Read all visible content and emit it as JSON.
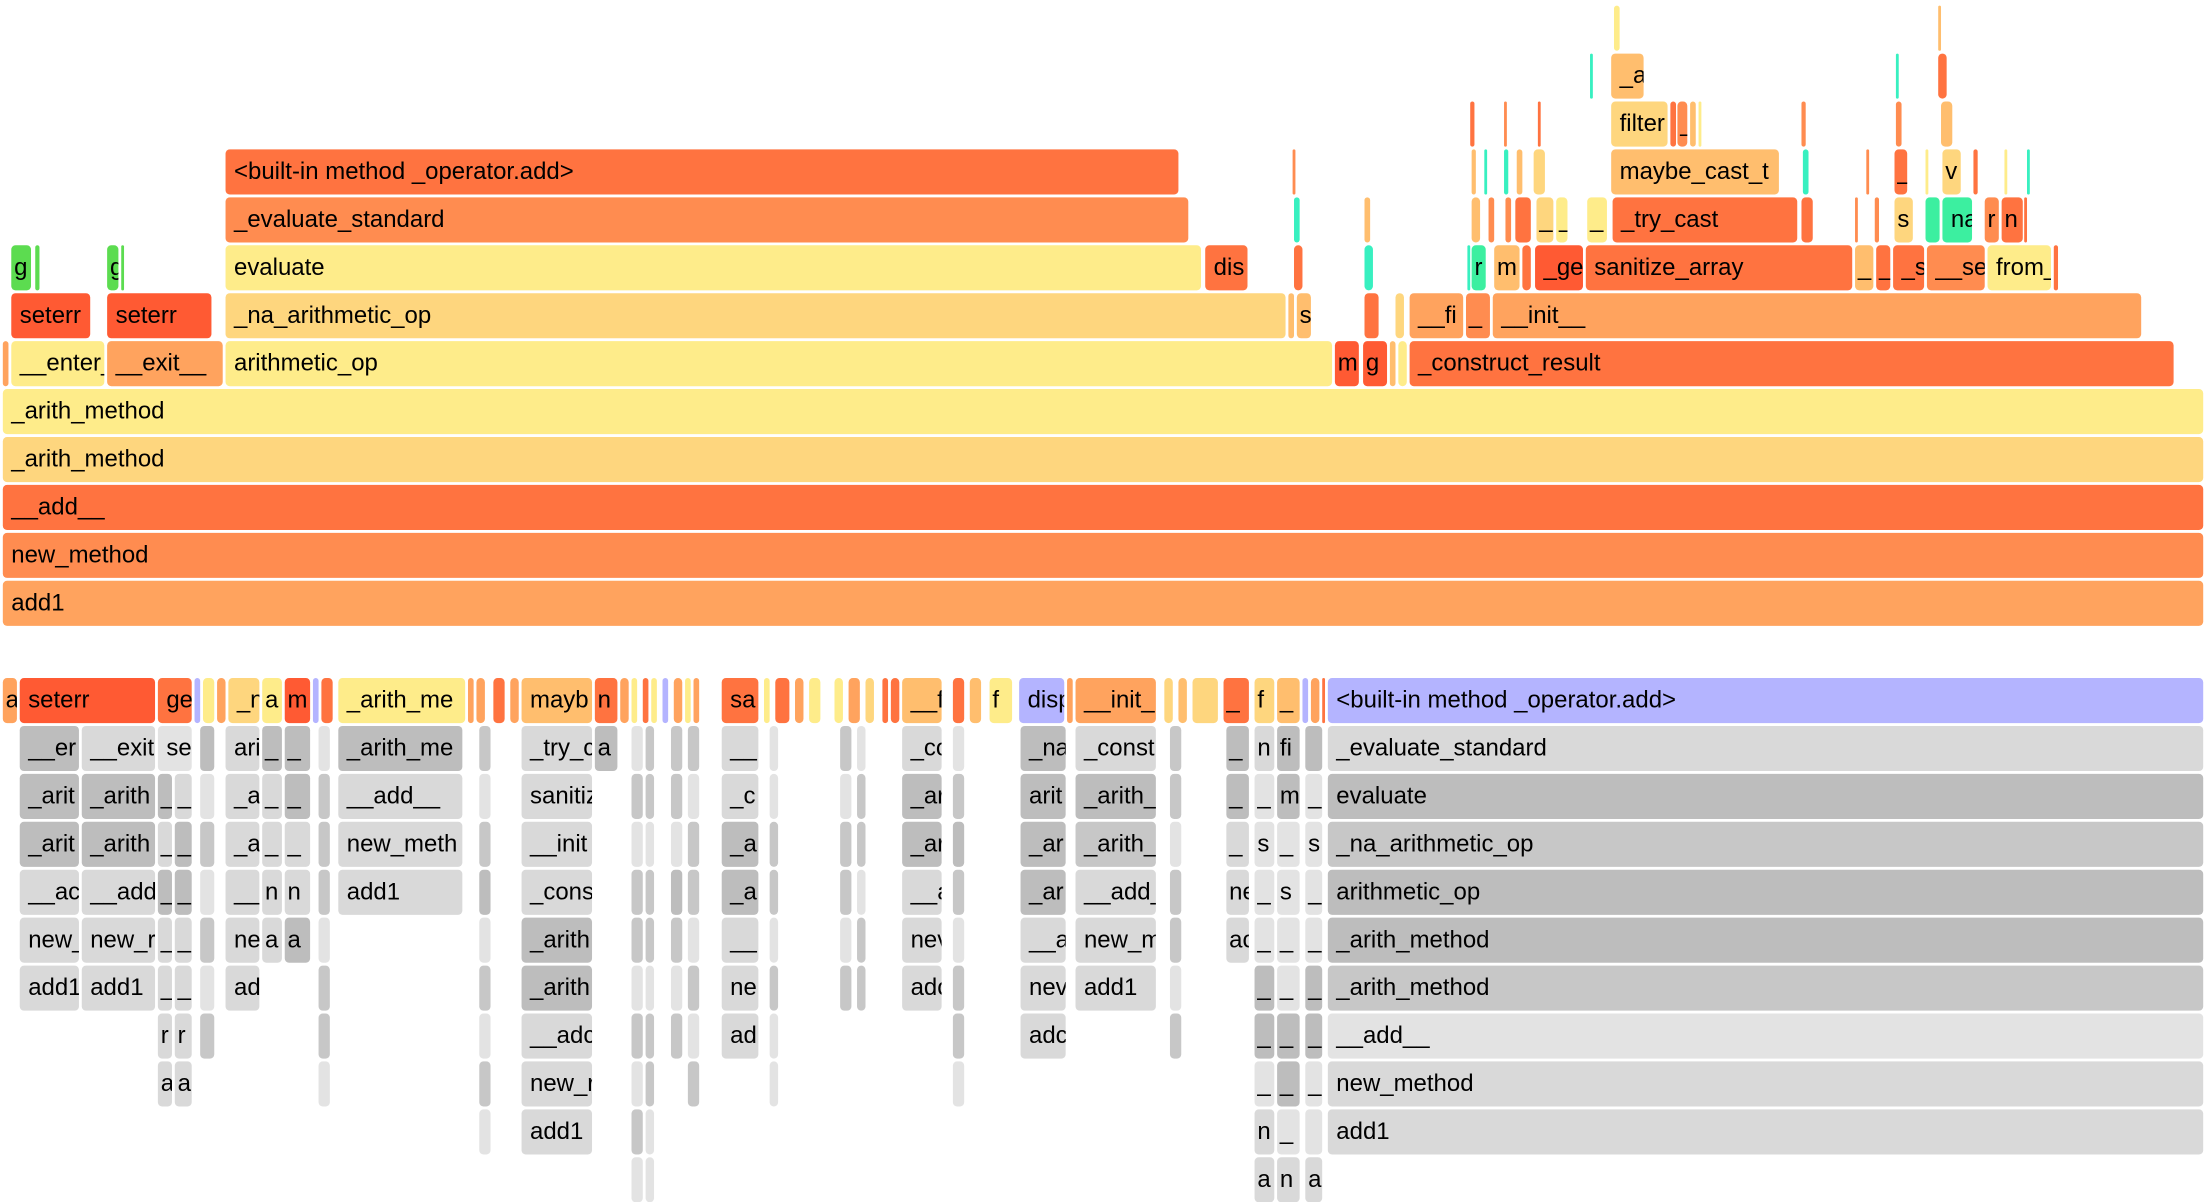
{
  "palette": {
    "Y": "#FEEC8A",
    "LY": "#FED67E",
    "PO": "#FFBE6E",
    "O": "#FFA35E",
    "DO": "#FF8C50",
    "R": "#FF7340",
    "RR": "#FF5A33",
    "G": "#5CDC50",
    "C": "#38F0C0",
    "TG": "#3CEFA0",
    "LAV": "#B4B4FF",
    "g1": "#D9D9D9",
    "g2": "#BDBDBD",
    "g3": "#C7C7C7",
    "g4": "#E3E3E3"
  },
  "top_graph": {
    "rows": [
      [
        [
          "add1",
          "O"
        ]
      ],
      [
        [
          "new_method",
          "DO"
        ]
      ],
      [
        [
          "__add__",
          "R"
        ]
      ],
      [
        [
          "_arith_method",
          "LY"
        ]
      ],
      [
        [
          "_arith_method",
          "Y"
        ]
      ],
      [
        [
          "",
          "O"
        ],
        [
          "__enter_",
          "Y"
        ],
        [
          "__exit__",
          "O"
        ],
        [
          "arithmetic_op",
          "Y"
        ],
        [
          "m",
          "RR"
        ],
        [
          "g",
          "RR"
        ],
        [
          "",
          "PO"
        ],
        [
          "",
          "Y"
        ],
        [
          "_construct_result",
          "R"
        ]
      ],
      [
        [
          "seterr",
          "RR"
        ],
        [
          "seterr",
          "RR"
        ],
        [
          "_na_arithmetic_op",
          "LY"
        ],
        [
          "",
          "PO"
        ],
        [
          "s",
          "PO"
        ],
        [
          "",
          "R"
        ],
        [
          "",
          "LY"
        ],
        [
          "__fi",
          "O"
        ],
        [
          "_",
          "DO"
        ],
        [
          "__init__",
          "O"
        ]
      ],
      [
        [
          "g",
          "G"
        ],
        [
          "",
          "G"
        ],
        [
          "g",
          "G"
        ],
        [
          "",
          "G"
        ],
        [
          "evaluate",
          "Y"
        ],
        [
          "dis",
          "R"
        ],
        [
          "",
          "R"
        ],
        [
          "",
          "C"
        ],
        [
          "",
          "C"
        ],
        [
          "r",
          "TG"
        ],
        [
          "m",
          "PO"
        ],
        [
          "",
          "R"
        ],
        [
          "_ge",
          "RR"
        ],
        [
          "sanitize_array",
          "R"
        ],
        [
          "_",
          "PO"
        ],
        [
          "_",
          "R"
        ],
        [
          "_s",
          "R"
        ],
        [
          "__se",
          "DO"
        ],
        [
          "from_",
          "Y"
        ],
        [
          "",
          "R"
        ]
      ],
      [
        [
          "_evaluate_standard",
          "DO"
        ],
        [
          "",
          "C"
        ],
        [
          "",
          "PO"
        ],
        [
          "",
          "PO"
        ],
        [
          "",
          "DO"
        ],
        [
          "",
          "DO"
        ],
        [
          "",
          "R"
        ],
        [
          "_",
          "LY"
        ],
        [
          "_",
          "Y"
        ],
        [
          "_",
          "Y"
        ],
        [
          "_try_cast",
          "R"
        ],
        [
          "",
          "R"
        ],
        [
          "",
          "DO"
        ],
        [
          "",
          "DO"
        ],
        [
          "s",
          "LY"
        ],
        [
          "",
          "TG"
        ],
        [
          "na",
          "TG"
        ],
        [
          "r",
          "DO"
        ],
        [
          "n",
          "R"
        ],
        [
          "",
          "R"
        ]
      ],
      [
        [
          "<built-in method _operator.add>",
          "R"
        ],
        [
          "",
          "DO"
        ],
        [
          "",
          "PO"
        ],
        [
          "",
          "C"
        ],
        [
          "",
          "C"
        ],
        [
          "",
          "PO"
        ],
        [
          "",
          "LY"
        ],
        [
          "maybe_cast_t",
          "PO"
        ],
        [
          "",
          "C"
        ],
        [
          "",
          "DO"
        ],
        [
          "_",
          "R"
        ],
        [
          "",
          "Y"
        ],
        [
          "v",
          "LY"
        ],
        [
          "",
          "R"
        ],
        [
          "",
          "Y"
        ],
        [
          "",
          "C"
        ]
      ],
      [
        [
          "",
          "R"
        ],
        [
          "",
          "DO"
        ],
        [
          "",
          "R"
        ],
        [
          "filter",
          "LY"
        ],
        [
          "",
          "R"
        ],
        [
          "_",
          "DO"
        ],
        [
          "",
          "PO"
        ],
        [
          "",
          "Y"
        ],
        [
          "",
          "DO"
        ],
        [
          "",
          "DO"
        ],
        [
          "",
          "PO"
        ]
      ],
      [
        [
          "",
          "C"
        ],
        [
          "_a",
          "PO"
        ],
        [
          "",
          "C"
        ],
        [
          "",
          "R"
        ]
      ],
      [
        [
          "",
          "Y"
        ],
        [
          "",
          "PO"
        ]
      ]
    ]
  },
  "bottom_graph": {
    "root_row": [
      [
        "a",
        "O"
      ],
      [
        "seterr",
        "RR"
      ],
      [
        "ge",
        "R"
      ],
      [
        "",
        "LAV"
      ],
      [
        "",
        "Y"
      ],
      [
        "",
        "O"
      ],
      [
        "_n",
        "LY"
      ],
      [
        "a",
        "Y"
      ],
      [
        "m",
        "RR"
      ],
      [
        "",
        "LAV"
      ],
      [
        "",
        "R"
      ],
      [
        "_arith_me",
        "Y"
      ],
      [
        "",
        "O"
      ],
      [
        "",
        "O"
      ],
      [
        "",
        "R"
      ],
      [
        "",
        "O"
      ],
      [
        "mayb",
        "PO"
      ],
      [
        "n",
        "R"
      ],
      [
        "",
        "O"
      ],
      [
        "",
        "Y"
      ],
      [
        "",
        "R"
      ],
      [
        "",
        "Y"
      ],
      [
        "",
        "LAV"
      ],
      [
        "",
        "O"
      ],
      [
        "",
        "Y"
      ],
      [
        "",
        "O"
      ],
      [
        "sa",
        "R"
      ],
      [
        "",
        "Y"
      ],
      [
        "",
        "R"
      ],
      [
        "",
        "O"
      ],
      [
        "",
        "Y"
      ],
      [
        "",
        "Y"
      ],
      [
        "",
        "O"
      ],
      [
        "",
        "LY"
      ],
      [
        "",
        "R"
      ],
      [
        "",
        "R"
      ],
      [
        "__f",
        "PO"
      ],
      [
        "",
        "R"
      ],
      [
        "",
        "PO"
      ],
      [
        "f",
        "Y"
      ],
      [
        "disp",
        "LAV"
      ],
      [
        "",
        "O"
      ],
      [
        "__init_",
        "O"
      ],
      [
        "",
        "LY"
      ],
      [
        "",
        "PO"
      ],
      [
        "",
        "LY"
      ],
      [
        "_",
        "R"
      ],
      [
        "f",
        "LY"
      ],
      [
        "_",
        "PO"
      ],
      [
        "",
        "LAV"
      ],
      [
        "",
        "O"
      ],
      [
        "",
        "R"
      ],
      [
        "<built-in method _operator.add>",
        "LAV"
      ]
    ],
    "columns": [
      {
        "labels": [
          "__er",
          "_arit",
          "_arit",
          "__ac",
          "new_",
          "add1"
        ],
        "colors": [
          "g2",
          "g2",
          "g2",
          "g1",
          "g1",
          "g1"
        ]
      },
      {
        "labels": [
          "__exit",
          "_arith",
          "_arith",
          "__add",
          "new_r",
          "add1"
        ],
        "colors": [
          "g1",
          "g2",
          "g2",
          "g1",
          "g1",
          "g1"
        ]
      },
      {
        "labels": [
          "se"
        ],
        "colors": [
          "g4"
        ]
      },
      {
        "labels": [
          "_",
          "_",
          "_",
          "_",
          "_",
          "r",
          "a"
        ],
        "colors": [
          "g2",
          "g1",
          "g2",
          "g1",
          "g1",
          "g1",
          "g1"
        ]
      },
      {
        "labels": [
          "_",
          "_",
          "_",
          "_",
          "_",
          "r",
          "a"
        ],
        "colors": [
          "g1",
          "g2",
          "g2",
          "g1",
          "g1",
          "g1",
          "g1"
        ]
      },
      {
        "labels": [
          "ari",
          "_a",
          "_a",
          "__",
          "ne",
          "ad"
        ],
        "colors": [
          "g1",
          "g1",
          "g1",
          "g1",
          "g1",
          "g1"
        ]
      },
      {
        "labels": [
          "_",
          "_",
          "_",
          "n",
          "a"
        ],
        "colors": [
          "g2",
          "g1",
          "g1",
          "g1",
          "g1"
        ]
      },
      {
        "labels": [
          "_",
          "_",
          "_",
          "n",
          "a"
        ],
        "colors": [
          "g2",
          "g2",
          "g1",
          "g1",
          "g2"
        ]
      },
      {
        "labels": [
          "_arith_me",
          "__add__",
          "new_meth",
          "add1"
        ],
        "colors": [
          "g2",
          "g1",
          "g1",
          "g1"
        ]
      },
      {
        "labels": [
          "_try_c",
          "sanitiz",
          "__init",
          "_cons",
          "_arith",
          "_arith",
          "__adc",
          "new_r",
          "add1"
        ],
        "colors": [
          "g1",
          "g1",
          "g1",
          "g1",
          "g2",
          "g2",
          "g1",
          "g1",
          "g1"
        ]
      },
      {
        "labels": [
          "a"
        ],
        "colors": [
          "g2"
        ]
      },
      {
        "labels": [
          "__",
          "_c",
          "_a",
          "_a",
          "__",
          "ne",
          "ad"
        ],
        "colors": [
          "g1",
          "g1",
          "g2",
          "g2",
          "g1",
          "g1",
          "g1"
        ]
      },
      {
        "labels": [
          "_co",
          "_ar",
          "_ar",
          "__a",
          "nev",
          "adc"
        ],
        "colors": [
          "g1",
          "g2",
          "g2",
          "g1",
          "g1",
          "g1"
        ]
      },
      {
        "labels": [
          "_na",
          "arit",
          "_ar",
          "_ar",
          "__a",
          "nev",
          "adc"
        ],
        "colors": [
          "g2",
          "g2",
          "g2",
          "g2",
          "g1",
          "g1",
          "g1"
        ]
      },
      {
        "labels": [
          "_const",
          "_arith_",
          "_arith_",
          "__add_",
          "new_m",
          "add1"
        ],
        "colors": [
          "g1",
          "g2",
          "g3",
          "g1",
          "g1",
          "g1"
        ]
      },
      {
        "labels": [
          "_",
          "_",
          "_",
          "ne",
          "ac"
        ],
        "colors": [
          "g2",
          "g2",
          "g1",
          "g1",
          "g1"
        ]
      },
      {
        "labels": [
          "n",
          "_",
          "s",
          "_",
          "_",
          "_",
          "_",
          "_",
          "n",
          "a"
        ],
        "colors": [
          "g1",
          "g4",
          "g4",
          "g4",
          "g4",
          "g2",
          "g2",
          "g4",
          "g1",
          "g1"
        ]
      },
      {
        "labels": [
          "fi",
          "m",
          "_",
          "s",
          "_",
          "_",
          "_",
          "_",
          "_",
          "n"
        ],
        "colors": [
          "g2",
          "g2",
          "g4",
          "g4",
          "g4",
          "g4",
          "g2",
          "g2",
          "g4",
          "g1"
        ]
      },
      {
        "labels": [
          "",
          "_",
          "s",
          "_",
          "_",
          "_",
          "_",
          "_",
          "",
          "a"
        ],
        "colors": [
          "g2",
          "g4",
          "g4",
          "g4",
          "g4",
          "g2",
          "g2",
          "g4",
          "g4",
          "g1"
        ]
      },
      {
        "labels": [
          "_evaluate_standard",
          "evaluate",
          "_na_arithmetic_op",
          "arithmetic_op",
          "_arith_method",
          "_arith_method",
          "__add__",
          "new_method",
          "add1"
        ],
        "colors": [
          "g1",
          "g2",
          "g3",
          "g2",
          "g2",
          "g3",
          "g4",
          "g1",
          "g1"
        ]
      },
      {
        "labels": [
          "",
          "",
          "",
          "",
          "",
          "",
          "",
          "",
          "",
          ""
        ],
        "colors": [
          "g3",
          "g3",
          "g4",
          "g3",
          "g3",
          "g4",
          "g3",
          "g3",
          "g4",
          "g4"
        ]
      },
      {
        "labels": [
          "",
          "",
          "",
          "",
          "",
          "",
          ""
        ],
        "colors": [
          "g2",
          "g4",
          "g3",
          "g4",
          "g3",
          "g4",
          "g3"
        ]
      },
      {
        "labels": [
          "",
          "",
          "",
          "",
          "",
          "",
          "",
          ""
        ],
        "colors": [
          "g4",
          "g3",
          "g3",
          "g3",
          "g4",
          "g3",
          "g3",
          "g4"
        ]
      },
      {
        "labels": [
          "",
          "",
          "",
          "",
          "",
          "",
          "",
          "",
          ""
        ],
        "colors": [
          "g3",
          "g4",
          "g3",
          "g2",
          "g4",
          "g3",
          "g4",
          "g3",
          "g4"
        ]
      },
      {
        "labels": [
          "",
          "",
          "",
          "",
          "",
          "",
          "",
          "",
          "",
          ""
        ],
        "colors": [
          "g4",
          "g3",
          "g4",
          "g3",
          "g3",
          "g4",
          "g3",
          "g4",
          "g3",
          "g4"
        ]
      },
      {
        "labels": [
          "",
          "",
          "",
          "",
          "",
          "",
          ""
        ],
        "colors": [
          "g3",
          "g3",
          "g4",
          "g2",
          "g3",
          "g4",
          "g3"
        ]
      },
      {
        "labels": [
          "",
          "",
          "",
          "",
          "",
          "",
          "",
          ""
        ],
        "colors": [
          "g4",
          "g4",
          "g3",
          "g3",
          "g4",
          "g3",
          "g4",
          "g4"
        ]
      },
      {
        "labels": [
          "",
          "",
          "",
          "",
          "",
          ""
        ],
        "colors": [
          "g3",
          "g4",
          "g3",
          "g3",
          "g4",
          "g3"
        ]
      },
      {
        "labels": [
          "",
          "",
          "",
          "",
          "",
          "",
          "",
          ""
        ],
        "colors": [
          "g4",
          "g3",
          "g2",
          "g3",
          "g4",
          "g3",
          "g3",
          "g4"
        ]
      },
      {
        "labels": [
          "",
          "",
          "",
          "",
          "",
          "",
          ""
        ],
        "colors": [
          "g3",
          "g3",
          "g4",
          "g3",
          "g3",
          "g4",
          "g3"
        ]
      },
      {
        "labels": [
          "",
          "",
          "",
          "",
          "",
          ""
        ],
        "colors": [
          "g4",
          "g3",
          "g3",
          "g4",
          "g3",
          "g3"
        ]
      },
      {
        "labels": [
          "",
          "",
          "",
          "",
          "",
          "",
          "",
          ""
        ],
        "colors": [
          "g3",
          "g4",
          "g3",
          "g3",
          "g4",
          "g3",
          "g4",
          "g3"
        ]
      }
    ]
  }
}
